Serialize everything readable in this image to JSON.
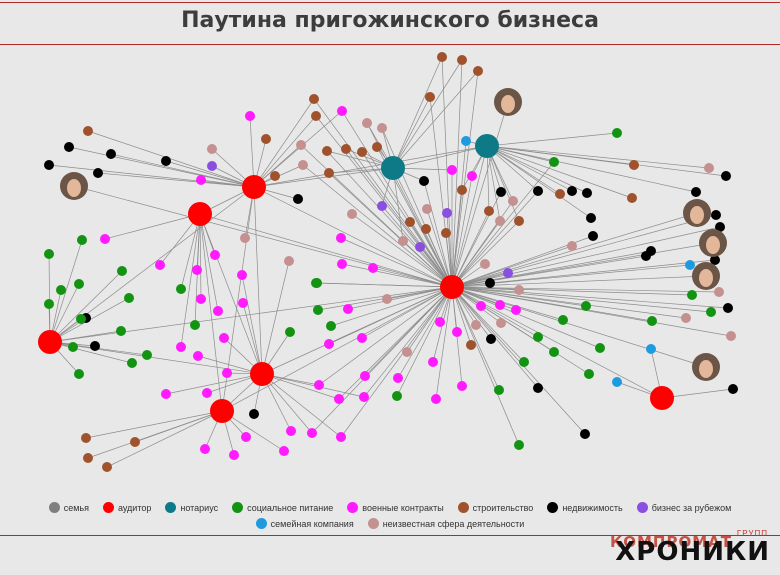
{
  "title": "Паутина пригожинского бизнеса",
  "legend": [
    {
      "label": "семья",
      "color": "#7f7f7f"
    },
    {
      "label": "аудитор",
      "color": "#ff0000"
    },
    {
      "label": "нотариус",
      "color": "#0e7a87"
    },
    {
      "label": "социальное питание",
      "color": "#129412"
    },
    {
      "label": "военные контракты",
      "color": "#ff1aff"
    },
    {
      "label": "строительство",
      "color": "#a0522d"
    },
    {
      "label": "недвижимость",
      "color": "#000000"
    },
    {
      "label": "бизнес за рубежом",
      "color": "#8a4fe0"
    },
    {
      "label": "семейная компания",
      "color": "#1e9be0"
    },
    {
      "label": "неизвестная сфера деятельности",
      "color": "#c49090"
    }
  ],
  "logo": {
    "small": "ГРУПП",
    "top": "КОМПРОМАТ",
    "main": "ХРОНИКИ"
  }
}
